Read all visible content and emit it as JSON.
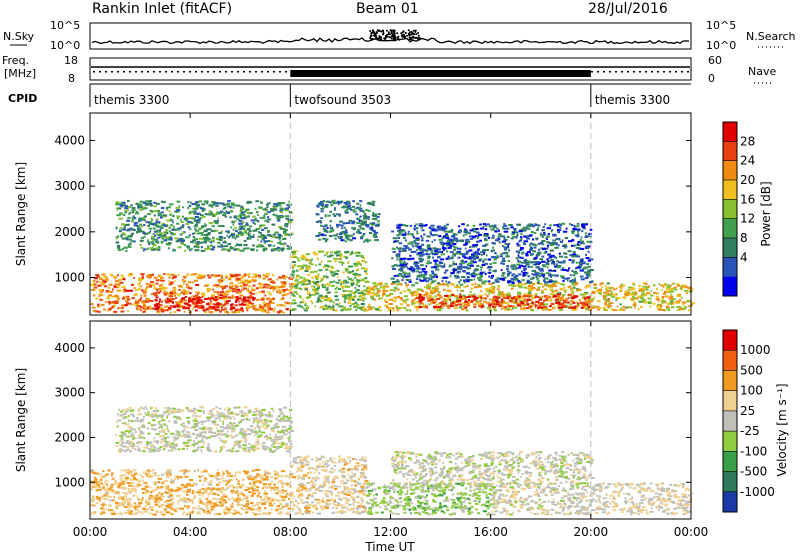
{
  "header": {
    "station": "Rankin Inlet (fitACF)",
    "beam": "Beam 01",
    "date": "28/Jul/2016"
  },
  "noise_panel": {
    "left_label": "N.Sky",
    "right_label": "N.Search",
    "y_ticks": [
      "10^5",
      "10^0"
    ],
    "right_ticks": [
      "10^5",
      "10^0"
    ]
  },
  "freq_panel": {
    "left_label_top": "Freq.",
    "left_label_unit": "[MHz]",
    "left_ticks": [
      "18",
      "8"
    ],
    "right_label": "Nave",
    "right_ticks": [
      "60",
      "0"
    ]
  },
  "cpid_panel": {
    "label": "CPID",
    "segments": [
      {
        "name": "themis 3300",
        "start_hour": 0,
        "end_hour": 8
      },
      {
        "name": "twofsound 3503",
        "start_hour": 8,
        "end_hour": 20
      },
      {
        "name": "themis 3300",
        "start_hour": 20,
        "end_hour": 24
      }
    ]
  },
  "time_axis": {
    "label": "Time UT",
    "tick_labels": [
      "00:00",
      "04:00",
      "08:00",
      "12:00",
      "16:00",
      "20:00",
      "00:00"
    ]
  },
  "chart_data": [
    {
      "type": "heatmap",
      "name": "power-panel",
      "xlabel": "Time UT",
      "ylabel": "Slant Range [km]",
      "xlim_hours": [
        0,
        24
      ],
      "ylim": [
        180,
        4600
      ],
      "y_ticks": [
        1000,
        2000,
        3000,
        4000
      ],
      "colorbar": {
        "label": "Power [dB]",
        "ticks": [
          "28",
          "24",
          "20",
          "16",
          "12",
          "8",
          "4"
        ],
        "range": [
          0,
          30
        ],
        "colors": [
          "#0000ee",
          "#2a55b8",
          "#2f7f5e",
          "#40a050",
          "#88c030",
          "#f0c020",
          "#f08a10",
          "#e84010",
          "#e00000"
        ]
      },
      "regions": [
        {
          "t0": 0.0,
          "t1": 8.0,
          "r0": 250,
          "r1": 1100,
          "level": 22
        },
        {
          "t0": 1.0,
          "t1": 8.0,
          "r0": 1600,
          "r1": 2700,
          "level": 10
        },
        {
          "t0": 2.5,
          "t1": 6.5,
          "r0": 300,
          "r1": 600,
          "level": 28
        },
        {
          "t0": 8.0,
          "t1": 11.0,
          "r0": 300,
          "r1": 1600,
          "level": 14
        },
        {
          "t0": 9.0,
          "t1": 11.5,
          "r0": 1800,
          "r1": 2700,
          "level": 8
        },
        {
          "t0": 11.0,
          "t1": 24.0,
          "r0": 300,
          "r1": 900,
          "level": 18
        },
        {
          "t0": 13.0,
          "t1": 20.0,
          "r0": 350,
          "r1": 650,
          "level": 26
        },
        {
          "t0": 12.0,
          "t1": 20.0,
          "r0": 900,
          "r1": 2200,
          "level": 6
        }
      ]
    },
    {
      "type": "heatmap",
      "name": "velocity-panel",
      "xlabel": "Time UT",
      "ylabel": "Slant Range [km]",
      "xlim_hours": [
        0,
        24
      ],
      "ylim": [
        180,
        4600
      ],
      "y_ticks": [
        1000,
        2000,
        3000,
        4000
      ],
      "colorbar": {
        "label": "Velocity [m s⁻¹]",
        "ticks": [
          "1000",
          "500",
          "100",
          "25",
          "-25",
          "-100",
          "-500",
          "-1000"
        ],
        "range": [
          -1000,
          1000
        ],
        "colors": [
          "#1a3aa8",
          "#2d7a5c",
          "#3aa048",
          "#90cc40",
          "#c0c0b8",
          "#f0d090",
          "#f09a20",
          "#f06010",
          "#e00000"
        ]
      },
      "regions": [
        {
          "t0": 0.0,
          "t1": 8.0,
          "r0": 300,
          "r1": 1300,
          "level": 300
        },
        {
          "t0": 1.0,
          "t1": 8.0,
          "r0": 1700,
          "r1": 2700,
          "level": 0
        },
        {
          "t0": 8.0,
          "t1": 11.0,
          "r0": 300,
          "r1": 1600,
          "level": 200
        },
        {
          "t0": 11.0,
          "t1": 16.0,
          "r0": 300,
          "r1": 1000,
          "level": -200
        },
        {
          "t0": 16.0,
          "t1": 20.0,
          "r0": 300,
          "r1": 900,
          "level": 50
        },
        {
          "t0": 20.0,
          "t1": 24.0,
          "r0": 300,
          "r1": 1000,
          "level": 100
        },
        {
          "t0": 12.0,
          "t1": 20.0,
          "r0": 900,
          "r1": 1700,
          "level": 0
        }
      ]
    }
  ]
}
